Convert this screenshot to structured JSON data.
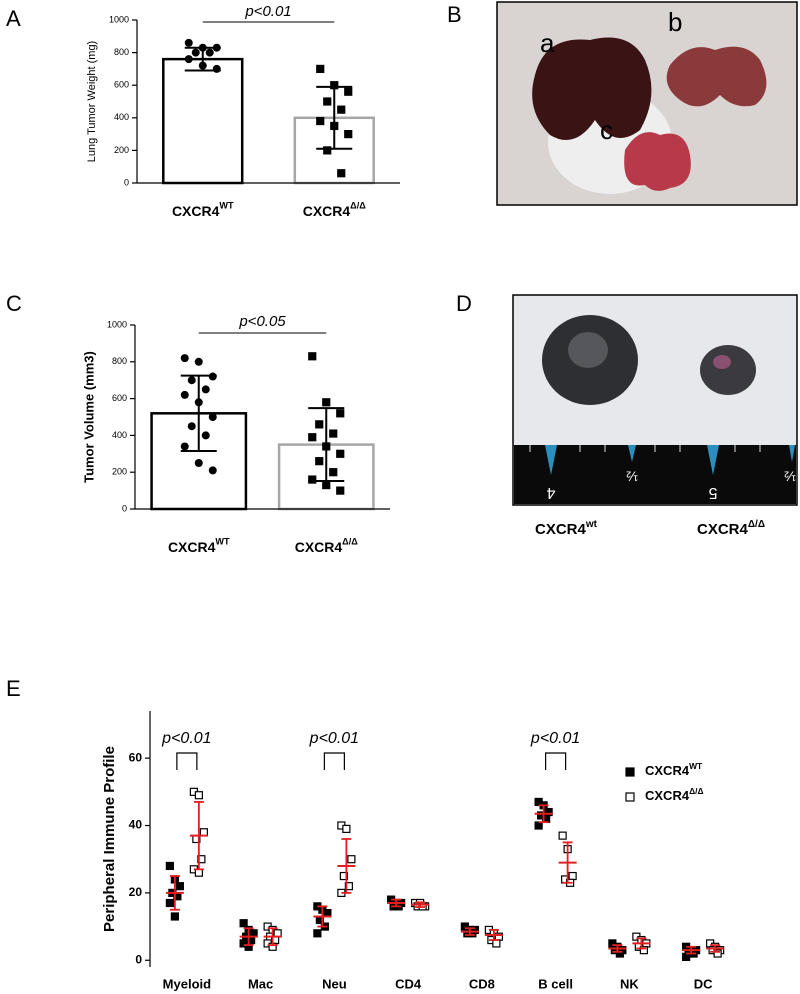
{
  "panel_labels": [
    "A",
    "B",
    "C",
    "D",
    "E"
  ],
  "photo_b": {
    "labels": [
      "a",
      "b",
      "c"
    ]
  },
  "photo_d": {
    "ruler_labels": [
      "4",
      "½",
      "5",
      "½"
    ],
    "captions": [
      "CXCR4",
      "CXCR4"
    ],
    "caption_superscripts": [
      "wt",
      "Δ/Δ"
    ]
  },
  "chart_data": [
    {
      "type": "bar",
      "ylabel": "Lung Tumor Weight (mg)",
      "categories": [
        "CXCR4",
        "CXCR4"
      ],
      "category_superscripts": [
        "WT",
        "Δ/Δ"
      ],
      "values": [
        760,
        400
      ],
      "errors": [
        70,
        190
      ],
      "points": [
        [
          860,
          830,
          830,
          800,
          800,
          760,
          720,
          700
        ],
        [
          700,
          600,
          560,
          500,
          450,
          380,
          350,
          300,
          200,
          60
        ]
      ],
      "markers": [
        "circle",
        "square"
      ],
      "bar_edge_colors": [
        "#000000",
        "#a6a6a6"
      ],
      "annotation": "p<0.01",
      "ylim": [
        0,
        1000
      ],
      "yticks": [
        0,
        200,
        400,
        600,
        800,
        1000
      ]
    },
    {
      "type": "bar",
      "ylabel": "Tumor Volume (mm3)",
      "categories": [
        "CXCR4",
        "CXCR4"
      ],
      "category_superscripts": [
        "WT",
        "Δ/Δ"
      ],
      "values": [
        520,
        350
      ],
      "errors": [
        205,
        198
      ],
      "points": [
        [
          820,
          800,
          720,
          700,
          650,
          620,
          580,
          500,
          450,
          400,
          340,
          250,
          210
        ],
        [
          830,
          580,
          520,
          460,
          410,
          390,
          340,
          300,
          260,
          200,
          160,
          130,
          100
        ]
      ],
      "markers": [
        "circle",
        "square"
      ],
      "bar_edge_colors": [
        "#000000",
        "#a6a6a6"
      ],
      "annotation": "p<0.05",
      "ylim": [
        0,
        1000
      ],
      "yticks": [
        0,
        200,
        400,
        600,
        800,
        1000
      ]
    },
    {
      "type": "strip",
      "ylabel": "Peripheral Immune Profile",
      "categories": [
        "Myeloid",
        "Mac",
        "Neu",
        "CD4",
        "CD8",
        "B cell",
        "NK",
        "DC"
      ],
      "significance": [
        "p<0.01",
        null,
        "p<0.01",
        null,
        null,
        "p<0.01",
        null,
        null
      ],
      "error_color": "#e02020",
      "series": [
        {
          "name": "CXCR4",
          "name_superscript": "WT",
          "color": "#000000",
          "marker": "filled-square",
          "means": [
            20,
            7,
            13,
            17,
            8.5,
            43.5,
            3.5,
            3
          ],
          "sds": [
            5,
            2.5,
            3,
            1,
            1,
            2.5,
            1,
            1
          ],
          "points": [
            [
              28,
              24,
              22,
              20,
              19,
              17,
              13
            ],
            [
              11,
              9,
              8,
              7,
              6,
              5,
              4
            ],
            [
              16,
              15,
              14,
              12,
              10,
              8
            ],
            [
              18,
              17,
              17,
              16,
              16
            ],
            [
              10,
              9,
              9,
              8,
              8
            ],
            [
              47,
              46,
              44,
              43,
              42,
              40
            ],
            [
              5,
              4,
              3,
              3,
              2
            ],
            [
              4,
              3,
              3,
              2,
              2,
              1
            ]
          ]
        },
        {
          "name": "CXCR4",
          "name_superscript": "Δ/Δ",
          "color": "#000000",
          "marker": "open-square",
          "means": [
            37,
            7,
            28,
            16.5,
            7.5,
            29,
            5,
            3.5
          ],
          "sds": [
            10,
            2.5,
            8,
            0.7,
            1.5,
            6,
            1.5,
            1
          ],
          "points": [
            [
              50,
              49,
              38,
              36,
              30,
              27,
              26
            ],
            [
              10,
              9,
              8,
              7,
              6,
              5,
              4
            ],
            [
              40,
              39,
              30,
              25,
              22,
              20
            ],
            [
              17,
              17,
              16,
              16,
              16
            ],
            [
              9,
              8,
              7,
              6,
              5
            ],
            [
              37,
              33,
              25,
              24,
              23
            ],
            [
              7,
              6,
              5,
              4,
              3
            ],
            [
              5,
              4,
              3,
              3,
              2
            ]
          ]
        }
      ],
      "ylim": [
        -2,
        74
      ],
      "yticks": [
        0,
        20,
        40,
        60
      ]
    }
  ]
}
